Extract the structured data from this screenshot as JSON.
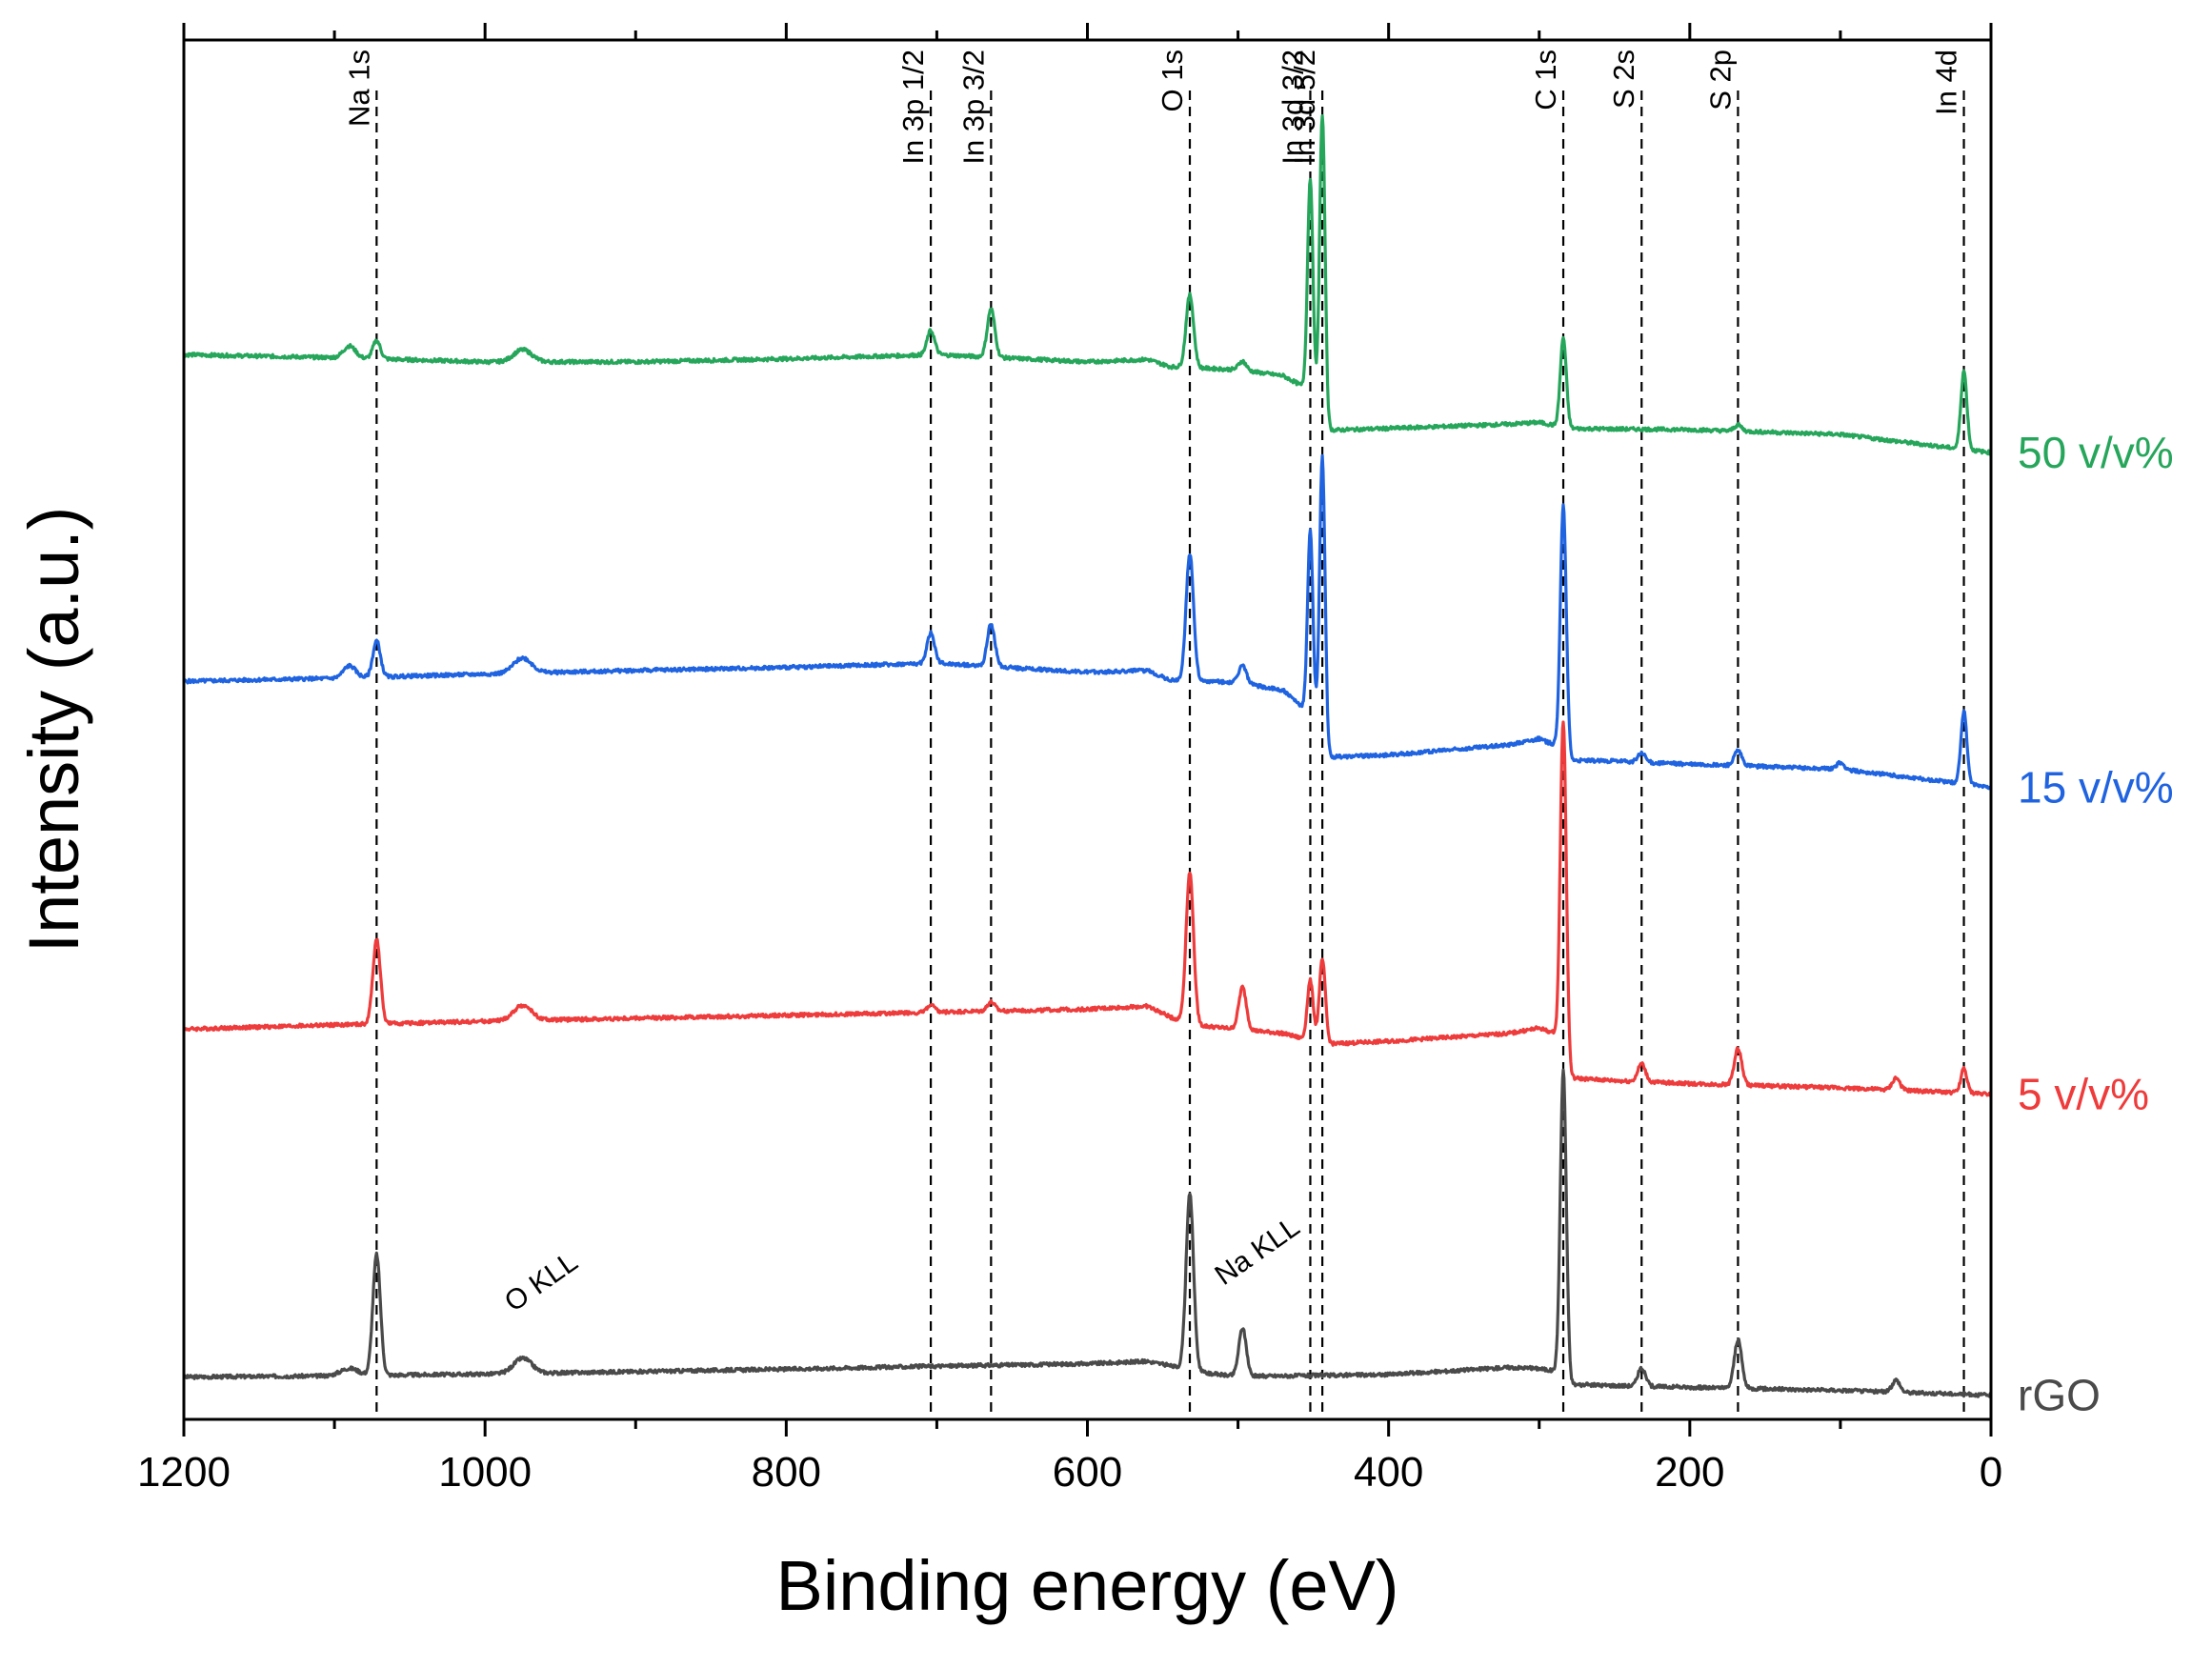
{
  "chart_data": {
    "type": "line",
    "title": "",
    "xlabel": "Binding energy (eV)",
    "ylabel": "Intensity (a.u.)",
    "xlim": [
      1200,
      0
    ],
    "x_reversed": true,
    "xticks": [
      1200,
      1000,
      800,
      600,
      400,
      200,
      0
    ],
    "yticks_shown": false,
    "legend": "series labels placed at right end of each trace",
    "peak_markers": [
      {
        "label": "Na 1s",
        "x": 1072
      },
      {
        "label": "In 3p 1/2",
        "x": 704
      },
      {
        "label": "In 3p 3/2",
        "x": 664
      },
      {
        "label": "O 1s",
        "x": 532
      },
      {
        "label": "In 3d 3/2",
        "x": 452
      },
      {
        "label": "In 3d 5/2",
        "x": 444
      },
      {
        "label": "C 1s",
        "x": 284
      },
      {
        "label": "S 2s",
        "x": 232
      },
      {
        "label": "S 2p",
        "x": 168
      },
      {
        "label": "In 4d",
        "x": 18
      }
    ],
    "annotations": [
      {
        "label": "O KLL",
        "x": 975
      },
      {
        "label": "Na KLL",
        "x": 497
      }
    ],
    "series": [
      {
        "name": "rGO",
        "color": "#4a4a4a",
        "baseline": [
          [
            1200,
            3.0
          ],
          [
            1100,
            3.2
          ],
          [
            1000,
            3.5
          ],
          [
            900,
            3.9
          ],
          [
            800,
            4.3
          ],
          [
            700,
            4.8
          ],
          [
            600,
            5.2
          ],
          [
            560,
            5.6
          ],
          [
            540,
            4.6
          ],
          [
            520,
            3.6
          ],
          [
            500,
            3.1
          ],
          [
            400,
            3.4
          ],
          [
            320,
            4.6
          ],
          [
            300,
            4.4
          ],
          [
            290,
            4.0
          ],
          [
            284,
            1.8
          ],
          [
            250,
            1.6
          ],
          [
            200,
            1.3
          ],
          [
            100,
            0.8
          ],
          [
            0,
            0.0
          ]
        ],
        "peaks": [
          {
            "x": 1072,
            "height": 20,
            "width": 2.5
          },
          {
            "x": 1090,
            "height": 1.2,
            "width": 6
          },
          {
            "x": 975,
            "height": 2.5,
            "width": 6
          },
          {
            "x": 532,
            "height": 29,
            "width": 2.5
          },
          {
            "x": 497,
            "height": 8,
            "width": 2.5
          },
          {
            "x": 284,
            "height": 52,
            "width": 2.0
          },
          {
            "x": 232,
            "height": 3,
            "width": 2.5
          },
          {
            "x": 168,
            "height": 8,
            "width": 2.5
          },
          {
            "x": 63,
            "height": 2,
            "width": 2.5
          }
        ]
      },
      {
        "name": "5 v/v%",
        "color": "#ee3b3b",
        "baseline": [
          [
            1200,
            60.5
          ],
          [
            1100,
            61.2
          ],
          [
            1000,
            61.8
          ],
          [
            900,
            62.3
          ],
          [
            800,
            62.8
          ],
          [
            700,
            63.3
          ],
          [
            600,
            63.8
          ],
          [
            560,
            64.3
          ],
          [
            545,
            62.5
          ],
          [
            530,
            61.2
          ],
          [
            470,
            59.8
          ],
          [
            455,
            58.8
          ],
          [
            445,
            58.0
          ],
          [
            400,
            58.5
          ],
          [
            320,
            59.8
          ],
          [
            300,
            60.7
          ],
          [
            290,
            59.8
          ],
          [
            284,
            52.5
          ],
          [
            250,
            52.0
          ],
          [
            200,
            51.5
          ],
          [
            100,
            50.8
          ],
          [
            0,
            49.8
          ]
        ],
        "peaks": [
          {
            "x": 1072,
            "height": 14,
            "width": 2.5
          },
          {
            "x": 975,
            "height": 2.5,
            "width": 6
          },
          {
            "x": 704,
            "height": 1.2,
            "width": 2.5
          },
          {
            "x": 664,
            "height": 1.5,
            "width": 2.5
          },
          {
            "x": 532,
            "height": 25,
            "width": 2.5
          },
          {
            "x": 497,
            "height": 7,
            "width": 2.5
          },
          {
            "x": 452,
            "height": 10,
            "width": 2.0
          },
          {
            "x": 444,
            "height": 14,
            "width": 2.0
          },
          {
            "x": 284,
            "height": 59,
            "width": 2.0
          },
          {
            "x": 232,
            "height": 3,
            "width": 2.5
          },
          {
            "x": 168,
            "height": 6,
            "width": 2.5
          },
          {
            "x": 63,
            "height": 2,
            "width": 2.5
          },
          {
            "x": 18,
            "height": 4,
            "width": 2.0
          }
        ]
      },
      {
        "name": "15 v/v%",
        "color": "#1f63e0",
        "baseline": [
          [
            1200,
            118.0
          ],
          [
            1100,
            118.5
          ],
          [
            1000,
            119.2
          ],
          [
            900,
            119.8
          ],
          [
            800,
            120.3
          ],
          [
            700,
            121.0
          ],
          [
            600,
            119.5
          ],
          [
            560,
            119.8
          ],
          [
            545,
            118.2
          ],
          [
            500,
            117.8
          ],
          [
            470,
            116.5
          ],
          [
            455,
            113.2
          ],
          [
            448,
            110.5
          ],
          [
            440,
            105.5
          ],
          [
            400,
            105.8
          ],
          [
            320,
            107.5
          ],
          [
            300,
            108.5
          ],
          [
            290,
            107.5
          ],
          [
            284,
            105.0
          ],
          [
            250,
            104.8
          ],
          [
            200,
            104.3
          ],
          [
            100,
            103.5
          ],
          [
            0,
            100.5
          ]
        ],
        "peaks": [
          {
            "x": 1090,
            "height": 2,
            "width": 4
          },
          {
            "x": 1072,
            "height": 6,
            "width": 2.5
          },
          {
            "x": 975,
            "height": 2.5,
            "width": 6
          },
          {
            "x": 704,
            "height": 5,
            "width": 2.5
          },
          {
            "x": 664,
            "height": 7,
            "width": 2.5
          },
          {
            "x": 532,
            "height": 21,
            "width": 2.5
          },
          {
            "x": 497,
            "height": 3,
            "width": 2.5
          },
          {
            "x": 452,
            "height": 31,
            "width": 1.8
          },
          {
            "x": 444,
            "height": 47,
            "width": 1.8
          },
          {
            "x": 284,
            "height": 42,
            "width": 2.0
          },
          {
            "x": 232,
            "height": 1.5,
            "width": 2.5
          },
          {
            "x": 168,
            "height": 2.5,
            "width": 2.5
          },
          {
            "x": 100,
            "height": 1,
            "width": 2.5
          },
          {
            "x": 18,
            "height": 12,
            "width": 2.0
          }
        ]
      },
      {
        "name": "50 v/v%",
        "color": "#26a65b",
        "baseline": [
          [
            1200,
            172.0
          ],
          [
            1100,
            171.5
          ],
          [
            1000,
            170.8
          ],
          [
            900,
            170.8
          ],
          [
            800,
            171.3
          ],
          [
            700,
            172.0
          ],
          [
            600,
            170.8
          ],
          [
            560,
            171.2
          ],
          [
            545,
            170.0
          ],
          [
            500,
            169.5
          ],
          [
            470,
            168.5
          ],
          [
            455,
            166.5
          ],
          [
            448,
            163.5
          ],
          [
            440,
            159.5
          ],
          [
            400,
            159.8
          ],
          [
            320,
            160.5
          ],
          [
            300,
            160.8
          ],
          [
            290,
            160.3
          ],
          [
            284,
            159.8
          ],
          [
            250,
            159.7
          ],
          [
            200,
            159.6
          ],
          [
            100,
            158.8
          ],
          [
            0,
            155.8
          ]
        ],
        "peaks": [
          {
            "x": 1090,
            "height": 2,
            "width": 4
          },
          {
            "x": 1072,
            "height": 3,
            "width": 2.5
          },
          {
            "x": 975,
            "height": 2.0,
            "width": 6
          },
          {
            "x": 704,
            "height": 4,
            "width": 2.5
          },
          {
            "x": 664,
            "height": 8,
            "width": 2.5
          },
          {
            "x": 532,
            "height": 12,
            "width": 2.5
          },
          {
            "x": 497,
            "height": 1.5,
            "width": 2.5
          },
          {
            "x": 452,
            "height": 36,
            "width": 1.8
          },
          {
            "x": 444,
            "height": 50,
            "width": 1.8
          },
          {
            "x": 284,
            "height": 15,
            "width": 2.0
          },
          {
            "x": 168,
            "height": 1,
            "width": 2.5
          },
          {
            "x": 18,
            "height": 13,
            "width": 2.0
          }
        ]
      }
    ]
  }
}
